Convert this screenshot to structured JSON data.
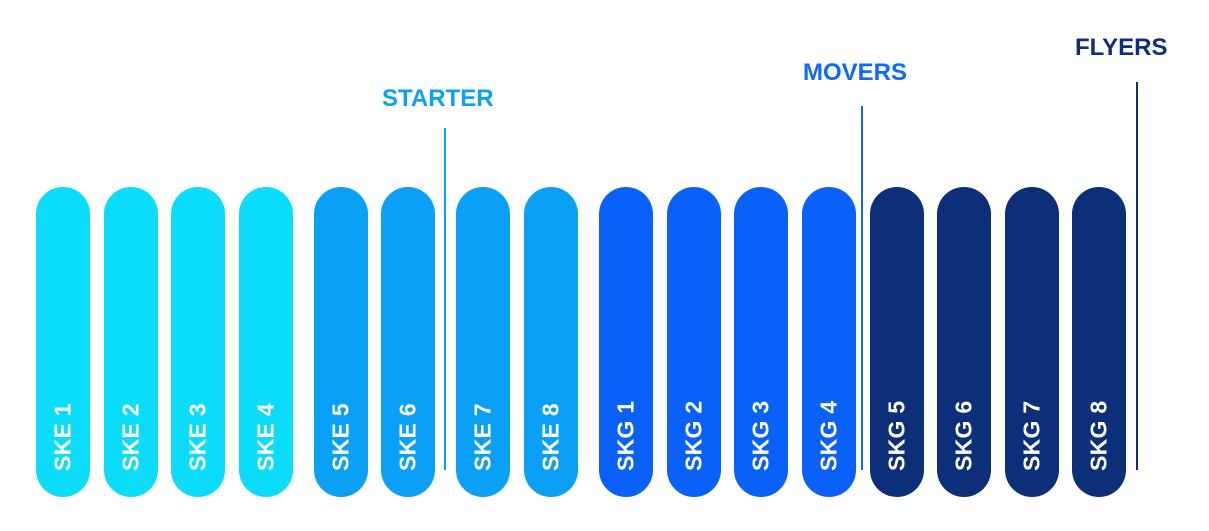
{
  "levels": [
    {
      "title": "STARTER",
      "color": "#0ca2f3"
    },
    {
      "title": "MOVERS",
      "color": "#0f6bf5"
    },
    {
      "title": "FLYERS",
      "color": "#0f2f7a"
    }
  ],
  "pills": [
    {
      "label": "SKE 1",
      "color": "#0adcf9"
    },
    {
      "label": "SKE 2",
      "color": "#0adcf9"
    },
    {
      "label": "SKE 3",
      "color": "#0adcf9"
    },
    {
      "label": "SKE 4",
      "color": "#0adcf9"
    },
    {
      "label": "SKE 5",
      "color": "#0aa0f5"
    },
    {
      "label": "SKE 6",
      "color": "#0aa0f5"
    },
    {
      "label": "SKE 7",
      "color": "#0aa0f5"
    },
    {
      "label": "SKE 8",
      "color": "#0aa0f5"
    },
    {
      "label": "SKG 1",
      "color": "#0a61fa"
    },
    {
      "label": "SKG 2",
      "color": "#0a61fa"
    },
    {
      "label": "SKG 3",
      "color": "#0a61fa"
    },
    {
      "label": "SKG 4",
      "color": "#0a61fa"
    },
    {
      "label": "SKG 5",
      "color": "#0d2f7a"
    },
    {
      "label": "SKG 6",
      "color": "#0d2f7a"
    },
    {
      "label": "SKG 7",
      "color": "#0d2f7a"
    },
    {
      "label": "SKG 8",
      "color": "#0d2f7a"
    }
  ]
}
